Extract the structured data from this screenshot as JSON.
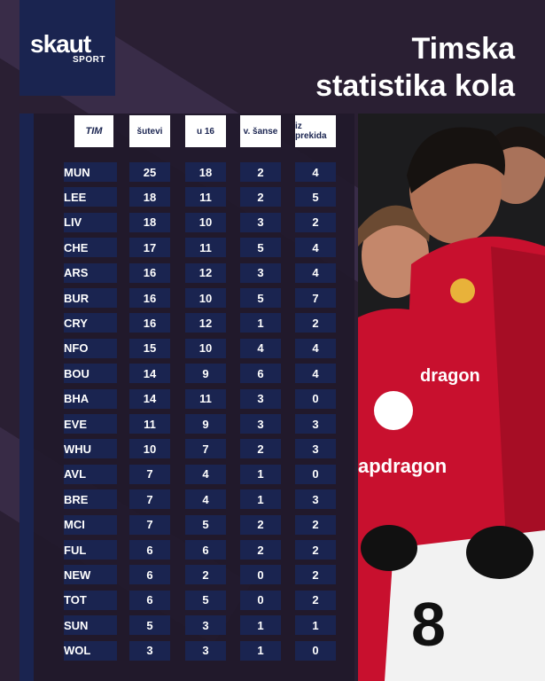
{
  "brand": {
    "name": "skaut",
    "sub": "SPORT"
  },
  "title_line1": "Timska",
  "title_line2": "statistika kola",
  "columns": [
    "TIM",
    "šutevi",
    "u 16",
    "v. šanse",
    "iz prekida"
  ],
  "rows": [
    {
      "team": "MUN",
      "v": [
        "25",
        "18",
        "2",
        "4"
      ]
    },
    {
      "team": "LEE",
      "v": [
        "18",
        "11",
        "2",
        "5"
      ]
    },
    {
      "team": "LIV",
      "v": [
        "18",
        "10",
        "3",
        "2"
      ]
    },
    {
      "team": "CHE",
      "v": [
        "17",
        "11",
        "5",
        "4"
      ]
    },
    {
      "team": "ARS",
      "v": [
        "16",
        "12",
        "3",
        "4"
      ]
    },
    {
      "team": "BUR",
      "v": [
        "16",
        "10",
        "5",
        "7"
      ]
    },
    {
      "team": "CRY",
      "v": [
        "16",
        "12",
        "1",
        "2"
      ]
    },
    {
      "team": "NFO",
      "v": [
        "15",
        "10",
        "4",
        "4"
      ]
    },
    {
      "team": "BOU",
      "v": [
        "14",
        "9",
        "6",
        "4"
      ]
    },
    {
      "team": "BHA",
      "v": [
        "14",
        "11",
        "3",
        "0"
      ]
    },
    {
      "team": "EVE",
      "v": [
        "11",
        "9",
        "3",
        "3"
      ]
    },
    {
      "team": "WHU",
      "v": [
        "10",
        "7",
        "2",
        "3"
      ]
    },
    {
      "team": "AVL",
      "v": [
        "7",
        "4",
        "1",
        "0"
      ]
    },
    {
      "team": "BRE",
      "v": [
        "7",
        "4",
        "1",
        "3"
      ]
    },
    {
      "team": "MCI",
      "v": [
        "7",
        "5",
        "2",
        "2"
      ]
    },
    {
      "team": "FUL",
      "v": [
        "6",
        "6",
        "2",
        "2"
      ]
    },
    {
      "team": "NEW",
      "v": [
        "6",
        "2",
        "0",
        "2"
      ]
    },
    {
      "team": "TOT",
      "v": [
        "6",
        "5",
        "0",
        "2"
      ]
    },
    {
      "team": "SUN",
      "v": [
        "5",
        "3",
        "1",
        "1"
      ]
    },
    {
      "team": "WOL",
      "v": [
        "3",
        "3",
        "1",
        "0"
      ]
    }
  ],
  "photo": {
    "sponsor": "apdragon",
    "sponsor_top": "dragon",
    "shirt_number": "8"
  },
  "colors": {
    "background": "#2a1f33",
    "navy": "#1a2450",
    "header_bg": "#ffffff",
    "shirt_red": "#c8102e"
  }
}
